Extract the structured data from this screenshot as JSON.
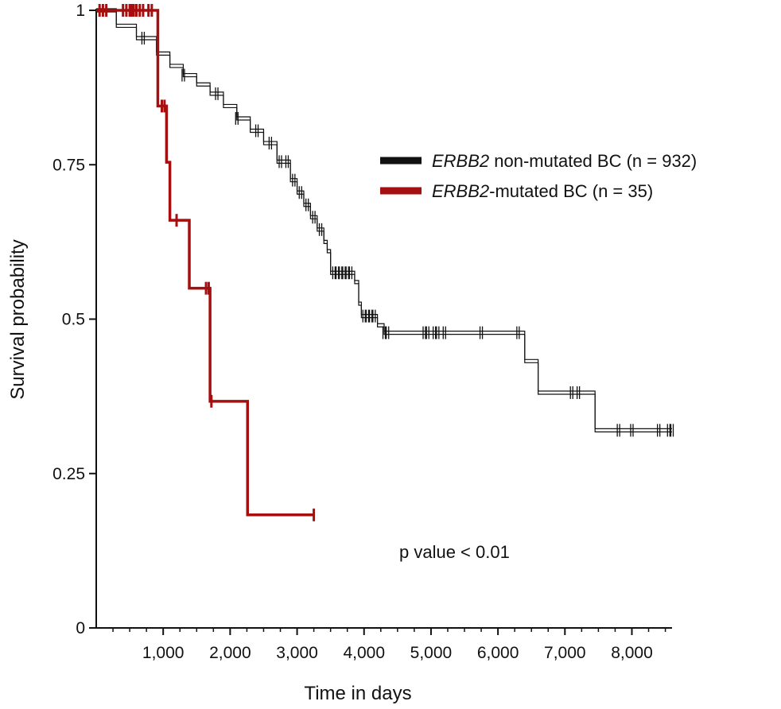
{
  "chart_data": {
    "type": "line",
    "subtype": "kaplan-meier",
    "xlabel": "Time in days",
    "ylabel": "Survival probability",
    "xlim": [
      0,
      8600
    ],
    "ylim": [
      0,
      1
    ],
    "x_ticks": [
      1000,
      2000,
      3000,
      4000,
      5000,
      6000,
      7000,
      8000
    ],
    "x_tick_labels": [
      "1,000",
      "2,000",
      "3,000",
      "4,000",
      "5,000",
      "6,000",
      "7,000",
      "8,000"
    ],
    "y_ticks": [
      0,
      0.25,
      0.5,
      0.75,
      1
    ],
    "y_tick_labels": [
      "0",
      "0.25",
      "0.5",
      "0.75",
      "1"
    ],
    "grid": false,
    "legend_position": "upper-right",
    "annotation": "p value < 0.01",
    "series": [
      {
        "name_italic": "ERBB2",
        "name_rest": " non-mutated BC (n = 932)",
        "color": "#111111",
        "style": "double-line",
        "steps": [
          [
            0,
            1.0
          ],
          [
            300,
            0.975
          ],
          [
            600,
            0.955
          ],
          [
            900,
            0.93
          ],
          [
            1100,
            0.91
          ],
          [
            1300,
            0.895
          ],
          [
            1500,
            0.88
          ],
          [
            1700,
            0.865
          ],
          [
            1900,
            0.845
          ],
          [
            2100,
            0.825
          ],
          [
            2300,
            0.805
          ],
          [
            2500,
            0.785
          ],
          [
            2700,
            0.755
          ],
          [
            2900,
            0.725
          ],
          [
            3000,
            0.705
          ],
          [
            3100,
            0.685
          ],
          [
            3200,
            0.665
          ],
          [
            3300,
            0.645
          ],
          [
            3400,
            0.625
          ],
          [
            3450,
            0.61
          ],
          [
            3500,
            0.575
          ],
          [
            3860,
            0.56
          ],
          [
            3920,
            0.525
          ],
          [
            3960,
            0.505
          ],
          [
            4200,
            0.49
          ],
          [
            4300,
            0.478
          ],
          [
            6400,
            0.432
          ],
          [
            6600,
            0.381
          ],
          [
            7450,
            0.32
          ],
          [
            8600,
            0.32
          ]
        ],
        "censor": [
          700,
          1300,
          1800,
          2100,
          2400,
          2600,
          2750,
          2850,
          2950,
          3050,
          3150,
          3250,
          3350,
          3550,
          3600,
          3650,
          3700,
          3750,
          3800,
          4000,
          4050,
          4100,
          4150,
          4300,
          4350,
          4900,
          4950,
          5050,
          5100,
          5200,
          5750,
          6300,
          7100,
          7200,
          7800,
          8000,
          8400,
          8550,
          8600
        ]
      },
      {
        "name_italic": "ERBB2",
        "name_rest": "-mutated BC (n = 35)",
        "color": "#a50f0f",
        "style": "solid",
        "steps": [
          [
            0,
            1.0
          ],
          [
            920,
            0.845
          ],
          [
            1050,
            0.754
          ],
          [
            1100,
            0.66
          ],
          [
            1390,
            0.55
          ],
          [
            1700,
            0.367
          ],
          [
            2260,
            0.183
          ],
          [
            3250,
            0.183
          ]
        ],
        "censor": [
          50,
          100,
          150,
          400,
          450,
          500,
          530,
          560,
          600,
          650,
          700,
          780,
          830,
          980,
          1020,
          1200,
          1640,
          1680,
          1720,
          3250
        ]
      }
    ]
  }
}
